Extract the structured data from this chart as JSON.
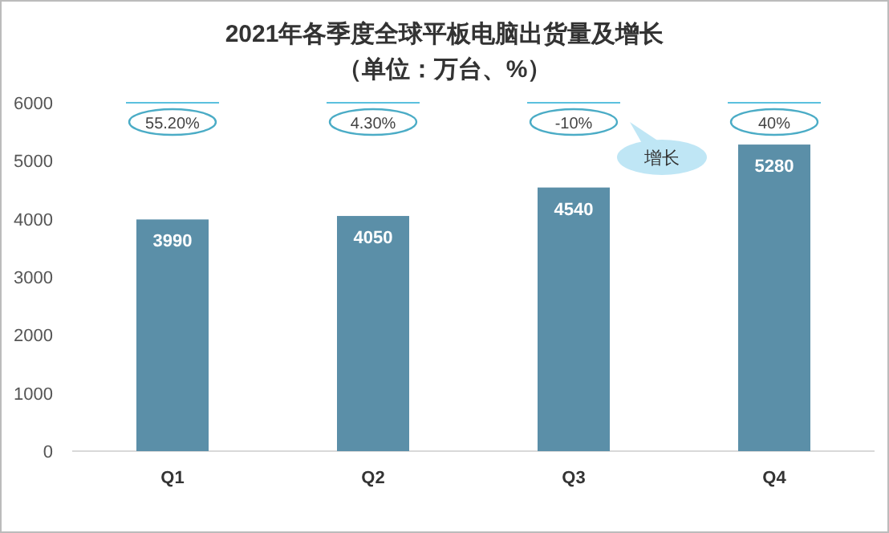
{
  "chart_data": {
    "type": "bar",
    "title": "2021年各季度全球平板电脑出货量及增长",
    "subtitle": "（单位：万台、%）",
    "categories": [
      "Q1",
      "Q2",
      "Q3",
      "Q4"
    ],
    "values": [
      3990,
      4050,
      4540,
      5280
    ],
    "color": "#5b8fa8",
    "ylim": [
      0,
      6000
    ],
    "yticks": [
      0,
      1000,
      2000,
      3000,
      4000,
      5000,
      6000
    ],
    "data_labels": true,
    "grid": false,
    "annotations": [
      "55.20%",
      "4.30%",
      "-10%",
      "40%",
      "增长"
    ]
  }
}
